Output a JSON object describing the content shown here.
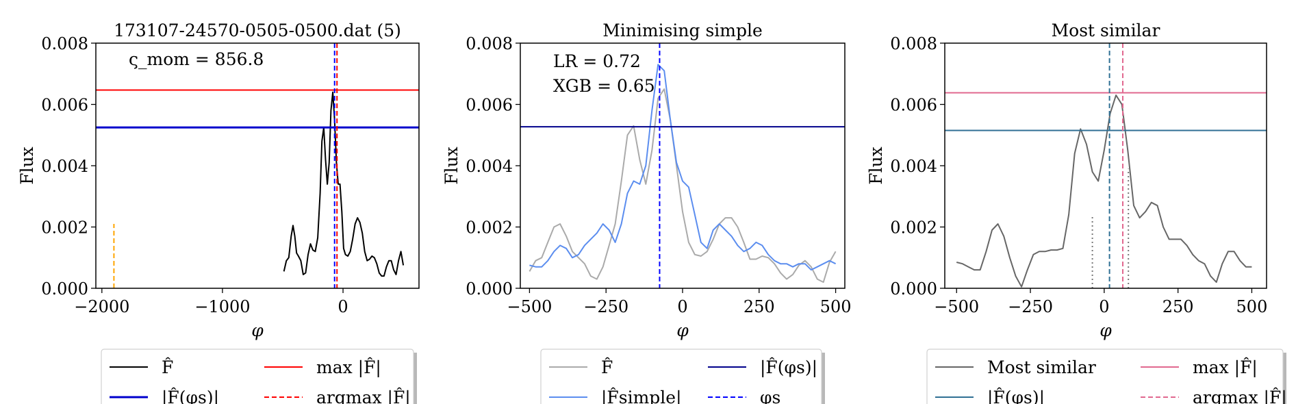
{
  "chart_data": [
    {
      "type": "line",
      "title": "173107-24570-0505-0500.dat (5)",
      "xlabel": "φ",
      "ylabel": "Flux",
      "xlim": [
        -2050,
        630
      ],
      "ylim": [
        0,
        0.008
      ],
      "xticks": [
        -2000,
        -1000,
        0
      ],
      "xtick_labels": [
        "−2000",
        "−1000",
        "0"
      ],
      "yticks": [
        0,
        0.002,
        0.004,
        0.006,
        0.008
      ],
      "ytick_labels": [
        "0.000",
        "0.002",
        "0.004",
        "0.006",
        "0.008"
      ],
      "annotation": "ς_mom = 856.8",
      "series": [
        {
          "key": "F",
          "color": "#000000",
          "style": "solid",
          "x": [
            -490,
            -470,
            -450,
            -430,
            -415,
            -400,
            -385,
            -370,
            -350,
            -330,
            -310,
            -290,
            -270,
            -250,
            -230,
            -210,
            -190,
            -175,
            -160,
            -145,
            -130,
            -115,
            -100,
            -85,
            -70,
            -55,
            -40,
            -25,
            -10,
            5,
            20,
            40,
            60,
            80,
            100,
            120,
            140,
            160,
            180,
            200,
            220,
            240,
            260,
            280,
            300,
            320,
            340,
            360,
            380,
            400,
            420,
            440,
            460,
            480,
            500
          ],
          "y": [
            0.00055,
            0.0009,
            0.001,
            0.0017,
            0.00205,
            0.0017,
            0.00115,
            0.00105,
            0.0009,
            0.00045,
            0.0005,
            0.0011,
            0.00145,
            0.00125,
            0.0012,
            0.00165,
            0.0031,
            0.0048,
            0.00525,
            0.0042,
            0.0034,
            0.0041,
            0.0058,
            0.0064,
            0.0055,
            0.0041,
            0.0034,
            0.0034,
            0.0025,
            0.0013,
            0.0011,
            0.00105,
            0.0012,
            0.0016,
            0.0021,
            0.0023,
            0.00215,
            0.0018,
            0.0012,
            0.0009,
            0.00095,
            0.00105,
            0.001,
            0.0008,
            0.0005,
            0.0004,
            0.0004,
            0.0007,
            0.0009,
            0.0009,
            0.0006,
            0.00045,
            0.0009,
            0.0012,
            0.00075
          ]
        },
        {
          "key": "argmax_marker",
          "color": "#ffa500",
          "style": "dashed",
          "x": [
            -1900,
            -1900
          ],
          "y": [
            0,
            0.0021
          ]
        }
      ],
      "hlines": [
        {
          "key": "maxF",
          "y": 0.00647,
          "color": "#ff0000",
          "style": "solid"
        },
        {
          "key": "Fphi",
          "y": 0.00525,
          "color": "#0000cc",
          "style": "solid-thick"
        }
      ],
      "vlines": [
        {
          "x": -70,
          "color": "#0000ff",
          "style": "dashed"
        },
        {
          "x": -50,
          "color": "#ff0000",
          "style": "dashed"
        }
      ],
      "legend": {
        "placement": "below",
        "entries": [
          {
            "label": "F̂",
            "color": "#000000",
            "style": "solid"
          },
          {
            "label": "max |F̂|",
            "color": "#ff0000",
            "style": "solid"
          },
          {
            "label": "|F̂(φs)|",
            "color": "#0000cc",
            "style": "solid-thick"
          },
          {
            "label": "argmax |F̂|",
            "color": "#ff0000",
            "style": "dashed"
          }
        ]
      }
    },
    {
      "type": "line",
      "title": "Minimising simple",
      "xlabel": "φ",
      "ylabel": "Flux",
      "xlim": [
        -530,
        530
      ],
      "ylim": [
        0,
        0.008
      ],
      "xticks": [
        -500,
        -250,
        0,
        250,
        500
      ],
      "xtick_labels": [
        "−500",
        "−250",
        "0",
        "250",
        "500"
      ],
      "yticks": [
        0,
        0.002,
        0.004,
        0.006,
        0.008
      ],
      "ytick_labels": [
        "0.000",
        "0.002",
        "0.004",
        "0.006",
        "0.008"
      ],
      "annotations": [
        "LR = 0.72",
        "XGB = 0.65"
      ],
      "series": [
        {
          "key": "F",
          "color": "#aaaaaa",
          "style": "solid",
          "x": [
            -500,
            -480,
            -460,
            -440,
            -420,
            -400,
            -380,
            -360,
            -340,
            -320,
            -300,
            -280,
            -260,
            -240,
            -220,
            -200,
            -180,
            -160,
            -140,
            -120,
            -100,
            -80,
            -60,
            -40,
            -20,
            0,
            20,
            40,
            60,
            80,
            100,
            120,
            140,
            160,
            180,
            200,
            220,
            240,
            260,
            280,
            300,
            320,
            340,
            360,
            380,
            400,
            420,
            440,
            460,
            480,
            500
          ],
          "y": [
            0.00055,
            0.0009,
            0.001,
            0.0015,
            0.002,
            0.0021,
            0.0017,
            0.0012,
            0.001,
            0.0008,
            0.0004,
            0.0003,
            0.0007,
            0.0014,
            0.0021,
            0.0035,
            0.005,
            0.0053,
            0.0042,
            0.0034,
            0.0045,
            0.0062,
            0.0065,
            0.0055,
            0.004,
            0.0025,
            0.0015,
            0.0011,
            0.00105,
            0.0012,
            0.0016,
            0.0021,
            0.0023,
            0.0023,
            0.002,
            0.0015,
            0.00095,
            0.00095,
            0.00105,
            0.001,
            0.0008,
            0.0005,
            0.0003,
            0.00045,
            0.00075,
            0.0009,
            0.0007,
            0.0003,
            0.0002,
            0.00085,
            0.0012
          ]
        },
        {
          "key": "F_simple",
          "color": "#5b8def",
          "style": "solid",
          "x": [
            -500,
            -480,
            -460,
            -440,
            -420,
            -400,
            -380,
            -360,
            -340,
            -320,
            -300,
            -280,
            -260,
            -240,
            -220,
            -200,
            -180,
            -160,
            -140,
            -120,
            -100,
            -80,
            -60,
            -40,
            -20,
            0,
            20,
            40,
            60,
            80,
            100,
            120,
            140,
            160,
            180,
            200,
            220,
            240,
            260,
            280,
            300,
            320,
            340,
            360,
            380,
            400,
            420,
            440,
            460,
            480,
            500
          ],
          "y": [
            0.00075,
            0.0007,
            0.0007,
            0.0009,
            0.0012,
            0.0014,
            0.0013,
            0.001,
            0.0011,
            0.0014,
            0.0016,
            0.0018,
            0.0021,
            0.0019,
            0.0015,
            0.0021,
            0.0031,
            0.0035,
            0.0034,
            0.004,
            0.0058,
            0.0073,
            0.0071,
            0.0055,
            0.0041,
            0.0035,
            0.0033,
            0.0024,
            0.0015,
            0.0013,
            0.0019,
            0.0021,
            0.0019,
            0.0017,
            0.0014,
            0.0012,
            0.0013,
            0.0015,
            0.0014,
            0.0011,
            0.0009,
            0.0008,
            0.0008,
            0.0007,
            0.0008,
            0.0008,
            0.0006,
            0.0007,
            0.0008,
            0.0009,
            0.0008
          ]
        }
      ],
      "hlines": [
        {
          "key": "Fphi",
          "y": 0.00527,
          "color": "#00008b",
          "style": "solid"
        }
      ],
      "vlines": [
        {
          "x": -75,
          "color": "#0000ff",
          "style": "dashed"
        }
      ],
      "legend": {
        "placement": "below",
        "entries": [
          {
            "label": "F̂",
            "color": "#aaaaaa",
            "style": "solid"
          },
          {
            "label": "|F̂(φs)|",
            "color": "#00008b",
            "style": "solid"
          },
          {
            "label": "|F̂simple|",
            "color": "#5b8def",
            "style": "solid"
          },
          {
            "label": "φs",
            "color": "#0000ff",
            "style": "dashed"
          }
        ]
      }
    },
    {
      "type": "line",
      "title": "Most similar",
      "xlabel": "φ",
      "ylabel": "Flux",
      "xlim": [
        -540,
        550
      ],
      "ylim": [
        0,
        0.008
      ],
      "xticks": [
        -500,
        -250,
        0,
        250,
        500
      ],
      "xtick_labels": [
        "−500",
        "−250",
        "0",
        "250",
        "500"
      ],
      "yticks": [
        0,
        0.002,
        0.004,
        0.006,
        0.008
      ],
      "ytick_labels": [
        "0.000",
        "0.002",
        "0.004",
        "0.006",
        "0.008"
      ],
      "series": [
        {
          "key": "most_similar",
          "color": "#666666",
          "style": "solid",
          "x": [
            -500,
            -480,
            -460,
            -440,
            -420,
            -400,
            -380,
            -360,
            -340,
            -320,
            -300,
            -280,
            -260,
            -240,
            -220,
            -200,
            -180,
            -160,
            -140,
            -120,
            -100,
            -80,
            -60,
            -40,
            -20,
            0,
            20,
            40,
            60,
            80,
            100,
            120,
            140,
            160,
            180,
            200,
            220,
            240,
            260,
            280,
            300,
            320,
            340,
            360,
            380,
            400,
            420,
            440,
            460,
            480,
            500
          ],
          "y": [
            0.00085,
            0.0008,
            0.0007,
            0.0006,
            0.0006,
            0.0012,
            0.0019,
            0.0021,
            0.0017,
            0.001,
            0.0004,
            5e-05,
            0.0006,
            0.0011,
            0.0012,
            0.0012,
            0.00125,
            0.00125,
            0.0013,
            0.0024,
            0.0044,
            0.0052,
            0.0047,
            0.0038,
            0.0035,
            0.0045,
            0.0057,
            0.0063,
            0.006,
            0.0045,
            0.0027,
            0.0023,
            0.0025,
            0.0028,
            0.0027,
            0.002,
            0.0016,
            0.0016,
            0.0016,
            0.0014,
            0.0011,
            0.0009,
            0.0008,
            0.0004,
            0.0002,
            0.0008,
            0.0012,
            0.0012,
            0.0009,
            0.0007,
            0.0007
          ]
        },
        {
          "key": "dot_left",
          "color": "#777777",
          "style": "dotted",
          "x": [
            -40,
            -40
          ],
          "y": [
            0,
            0.0024
          ]
        },
        {
          "key": "dot_right",
          "color": "#777777",
          "style": "dotted",
          "x": [
            82,
            82
          ],
          "y": [
            0,
            0.0039
          ]
        }
      ],
      "hlines": [
        {
          "key": "maxF",
          "y": 0.00638,
          "color": "#e1688f",
          "style": "solid"
        },
        {
          "key": "Fphi",
          "y": 0.00515,
          "color": "#2f6f94",
          "style": "solid"
        }
      ],
      "vlines": [
        {
          "x": 18,
          "color": "#2f6f94",
          "style": "dashed"
        },
        {
          "x": 63,
          "color": "#e1688f",
          "style": "dashed"
        }
      ],
      "legend": {
        "placement": "below",
        "entries": [
          {
            "label": "Most similar",
            "color": "#666666",
            "style": "solid"
          },
          {
            "label": "max |F̂|",
            "color": "#e1688f",
            "style": "solid"
          },
          {
            "label": "|F̂(φs)|",
            "color": "#2f6f94",
            "style": "solid"
          },
          {
            "label": "argmax |F̂|",
            "color": "#e1688f",
            "style": "dashed"
          }
        ]
      }
    }
  ]
}
